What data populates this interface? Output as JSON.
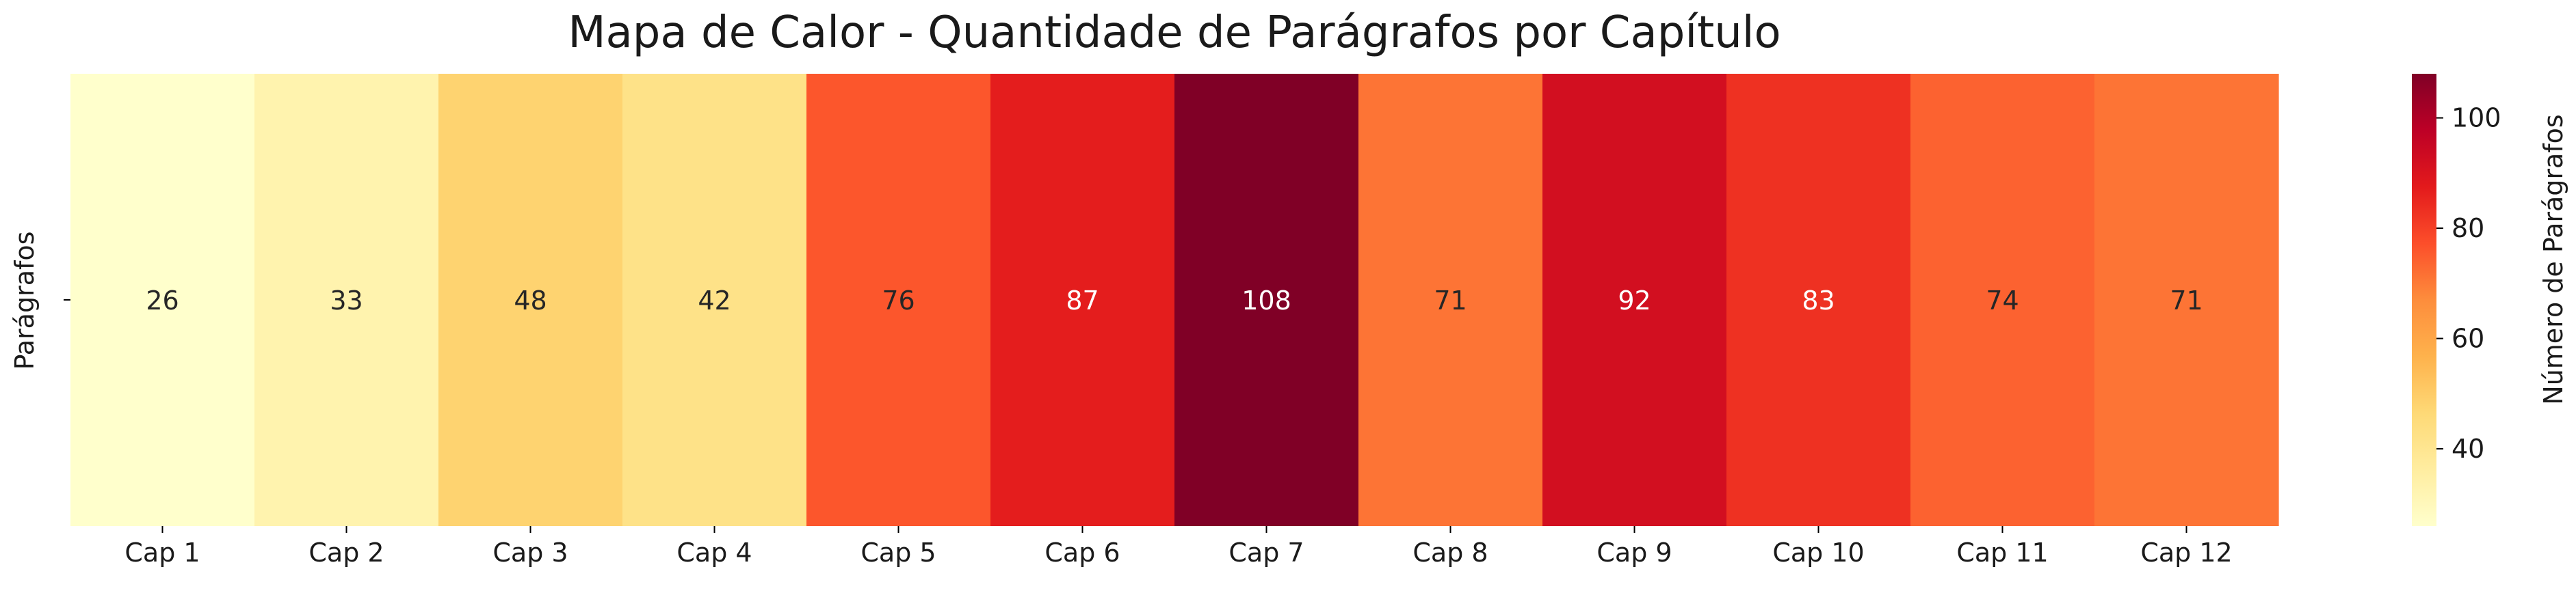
{
  "chart_data": {
    "type": "heatmap",
    "title": "Mapa de Calor - Quantidade de Parágrafos por Capítulo",
    "xlabel": "",
    "ylabel": "",
    "rows": [
      "Parágrafos"
    ],
    "categories": [
      "Cap 1",
      "Cap 2",
      "Cap 3",
      "Cap 4",
      "Cap 5",
      "Cap 6",
      "Cap 7",
      "Cap 8",
      "Cap 9",
      "Cap 10",
      "Cap 11",
      "Cap 12"
    ],
    "values": [
      [
        26,
        33,
        48,
        42,
        76,
        87,
        108,
        71,
        92,
        83,
        74,
        71
      ]
    ],
    "colormap": "YlOrRd",
    "colorbar": {
      "label": "Número de Parágrafos",
      "range": [
        26,
        108
      ],
      "ticks": [
        40,
        60,
        80,
        100
      ]
    },
    "annotate": true,
    "grid": false
  }
}
